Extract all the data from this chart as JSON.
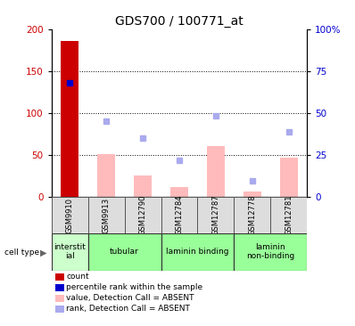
{
  "title": "GDS700 / 100771_at",
  "samples": [
    "GSM9910",
    "GSM9913",
    "GSM12790",
    "GSM12784",
    "GSM12787",
    "GSM12778",
    "GSM12781"
  ],
  "cell_type_groups": [
    {
      "label": "interstit\nial",
      "start": 0,
      "end": 1,
      "color": "#ccffcc"
    },
    {
      "label": "tubular",
      "start": 1,
      "end": 3,
      "color": "#99ff99"
    },
    {
      "label": "laminin binding",
      "start": 3,
      "end": 5,
      "color": "#99ff99"
    },
    {
      "label": "laminin\nnon-binding",
      "start": 5,
      "end": 7,
      "color": "#99ff99"
    }
  ],
  "count_values": [
    186,
    0,
    0,
    0,
    0,
    0,
    0
  ],
  "rank_values": [
    136,
    0,
    0,
    0,
    0,
    0,
    0
  ],
  "bar_values_absent": [
    0,
    51,
    26,
    12,
    61,
    7,
    47
  ],
  "rank_absent": [
    0,
    91,
    71,
    44,
    97,
    20,
    78
  ],
  "ylim_left": [
    0,
    200
  ],
  "ylim_right": [
    0,
    100
  ],
  "yticks_left": [
    0,
    50,
    100,
    150,
    200
  ],
  "yticks_right": [
    0,
    25,
    50,
    75,
    100
  ],
  "bar_color_count": "#cc0000",
  "bar_color_absent": "#ffbbbb",
  "rank_color": "#0000cc",
  "rank_absent_color": "#aaaaee",
  "legend_items": [
    {
      "label": "count",
      "color": "#cc0000"
    },
    {
      "label": "percentile rank within the sample",
      "color": "#0000cc"
    },
    {
      "label": "value, Detection Call = ABSENT",
      "color": "#ffbbbb"
    },
    {
      "label": "rank, Detection Call = ABSENT",
      "color": "#aaaaee"
    }
  ]
}
